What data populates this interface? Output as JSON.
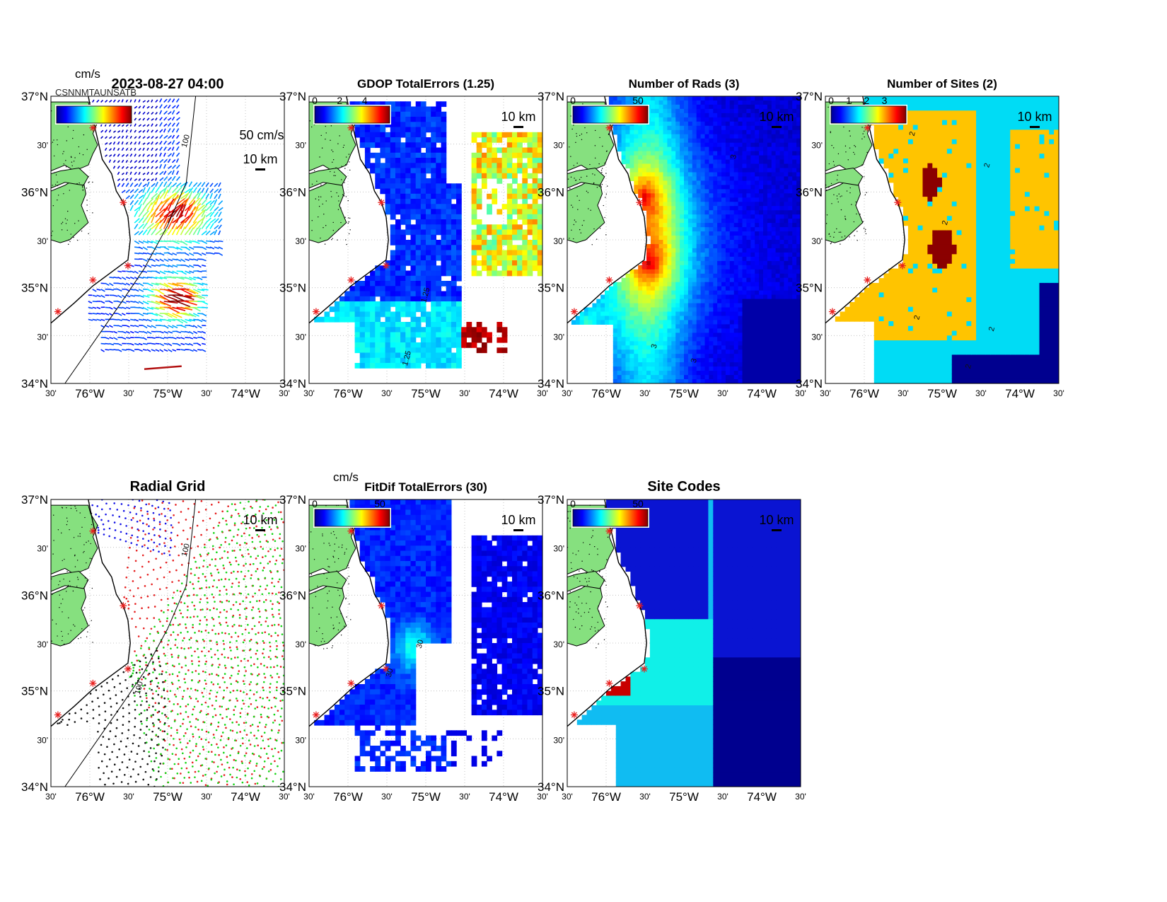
{
  "colors": {
    "land": "#86e07f",
    "site_marker": "#e8201f",
    "grid": "#b0b0b0",
    "contour": "#111111"
  },
  "axes": {
    "lat_labels": [
      "37°N",
      "30'",
      "36°N",
      "30'",
      "35°N",
      "30'",
      "34°N"
    ],
    "lon_labels": [
      "30'",
      "76°W",
      "30'",
      "75°W",
      "30'",
      "74°W",
      "30'"
    ]
  },
  "panels": [
    {
      "id": "currents",
      "title": "2023-08-27 04:00",
      "colorbar_unit": "cm/s",
      "colorbar_ticks": [],
      "speed_label": "50 cm/s",
      "scale_label": "10 km",
      "overlap_text": "CSNNMTAUNSATB",
      "contour_labels": [
        "100"
      ]
    },
    {
      "id": "gdop",
      "title": "GDOP TotalErrors (1.25)",
      "colorbar_unit": "",
      "colorbar_ticks": [
        "0",
        "2",
        "4"
      ],
      "scale_label": "10 km",
      "contour_labels": [
        "1.25",
        "1.25"
      ]
    },
    {
      "id": "nrads",
      "title": "Number of Rads (3)",
      "colorbar_unit": "",
      "colorbar_ticks": [
        "0",
        "50"
      ],
      "scale_label": "10 km",
      "contour_labels": [
        "3",
        "3",
        "3"
      ]
    },
    {
      "id": "nsites",
      "title": "Number of Sites (2)",
      "colorbar_unit": "",
      "colorbar_ticks": [
        "0",
        "1",
        "2",
        "3"
      ],
      "scale_label": "10 km",
      "contour_labels": [
        "2",
        "2",
        "2",
        "2",
        "2",
        "2"
      ]
    },
    {
      "id": "radialgrid",
      "title": "Radial Grid",
      "colorbar_unit": "",
      "colorbar_ticks": [],
      "scale_label": "10 km",
      "contour_labels": [
        "100",
        "100"
      ]
    },
    {
      "id": "fitdif",
      "title": "FitDif TotalErrors (30)",
      "colorbar_unit": "cm/s",
      "colorbar_ticks": [
        "0",
        "50"
      ],
      "scale_label": "10 km",
      "contour_labels": [
        "30",
        "30"
      ]
    },
    {
      "id": "sitecodes",
      "title": "Site Codes",
      "colorbar_unit": "",
      "colorbar_ticks": [
        "0",
        "50"
      ],
      "scale_label": "10 km",
      "contour_labels": []
    }
  ]
}
